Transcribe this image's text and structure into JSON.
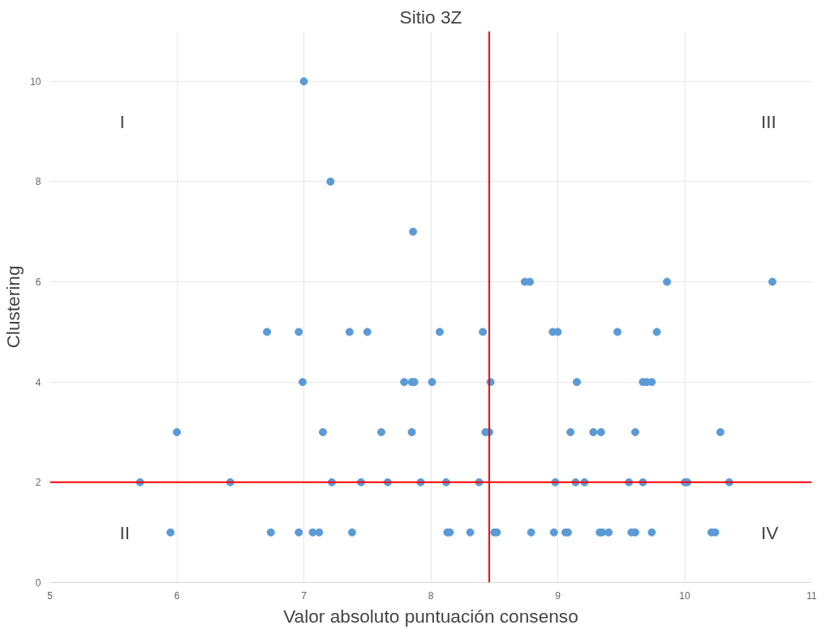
{
  "chart_data": {
    "type": "scatter",
    "title": "Sitio 3Z",
    "xlabel": "Valor absoluto puntuación consenso",
    "ylabel": "Clustering",
    "series": [
      {
        "color": "#5b9bd5",
        "x": [
          7.0,
          7.21,
          7.86,
          8.74,
          8.78,
          9.86,
          10.69,
          6.71,
          6.96,
          7.36,
          7.5,
          8.07,
          8.41,
          8.96,
          9.0,
          9.47,
          9.78,
          6.99,
          7.79,
          7.85,
          7.87,
          8.01,
          8.47,
          9.15,
          9.67,
          9.7,
          9.74,
          6.0,
          7.15,
          7.61,
          7.85,
          8.43,
          8.46,
          9.1,
          9.28,
          9.34,
          9.61,
          10.28,
          5.71,
          6.42,
          7.22,
          7.45,
          7.66,
          7.92,
          8.12,
          8.38,
          8.98,
          9.14,
          9.21,
          9.56,
          9.67,
          10.0,
          10.02,
          10.35,
          5.95,
          6.74,
          6.96,
          7.07,
          7.12,
          7.38,
          8.13,
          8.15,
          8.31,
          8.5,
          8.52,
          8.79,
          8.97,
          9.06,
          9.08,
          9.33,
          9.35,
          9.4,
          9.58,
          9.61,
          9.74,
          10.21,
          10.24
        ],
        "values": [
          10,
          8,
          7,
          6,
          6,
          6,
          6,
          5,
          5,
          5,
          5,
          5,
          5,
          5,
          5,
          5,
          5,
          4,
          4,
          4,
          4,
          4,
          4,
          4,
          4,
          4,
          4,
          3,
          3,
          3,
          3,
          3,
          3,
          3,
          3,
          3,
          3,
          3,
          2,
          2,
          2,
          2,
          2,
          2,
          2,
          2,
          2,
          2,
          2,
          2,
          2,
          2,
          2,
          2,
          1,
          1,
          1,
          1,
          1,
          1,
          1,
          1,
          1,
          1,
          1,
          1,
          1,
          1,
          1,
          1,
          1,
          1,
          1,
          1,
          1,
          1,
          1
        ]
      }
    ],
    "xlim": [
      5,
      11
    ],
    "ylim": [
      0,
      11
    ],
    "xticks": [
      5,
      6,
      7,
      8,
      9,
      10,
      11
    ],
    "yticks": [
      0,
      2,
      4,
      6,
      8,
      10
    ],
    "grid": true,
    "marker": "circle",
    "ref_lines": [
      {
        "axis": "x",
        "value": 8.46,
        "color": "#ff0000"
      },
      {
        "axis": "y",
        "value": 2,
        "color": "#ff0000"
      }
    ],
    "annotations": [
      "I",
      "III",
      "II",
      "IV"
    ]
  }
}
